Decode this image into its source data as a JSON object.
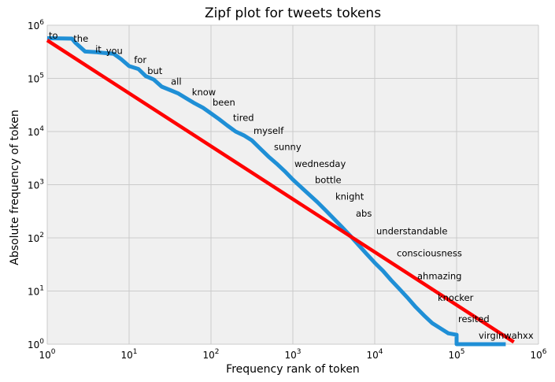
{
  "chart_data": {
    "type": "line",
    "title": "Zipf plot for tweets tokens",
    "xlabel": "Frequency rank of token",
    "ylabel": "Absolute frequency of token",
    "xscale": "log",
    "yscale": "log",
    "xlim": [
      1,
      1000000
    ],
    "ylim": [
      1,
      1000000
    ],
    "grid": true,
    "x_ticks": [
      {
        "base": "10",
        "exp": "0"
      },
      {
        "base": "10",
        "exp": "1"
      },
      {
        "base": "10",
        "exp": "2"
      },
      {
        "base": "10",
        "exp": "3"
      },
      {
        "base": "10",
        "exp": "4"
      },
      {
        "base": "10",
        "exp": "5"
      },
      {
        "base": "10",
        "exp": "6"
      }
    ],
    "y_ticks": [
      {
        "base": "10",
        "exp": "0"
      },
      {
        "base": "10",
        "exp": "1"
      },
      {
        "base": "10",
        "exp": "2"
      },
      {
        "base": "10",
        "exp": "3"
      },
      {
        "base": "10",
        "exp": "4"
      },
      {
        "base": "10",
        "exp": "5"
      },
      {
        "base": "10",
        "exp": "6"
      }
    ],
    "series": [
      {
        "color": "#1f8fd6",
        "x": [
          1,
          2,
          2.2,
          2.9,
          4,
          5,
          6.5,
          8,
          10,
          13,
          16,
          20,
          25,
          32,
          40,
          50,
          63,
          80,
          100,
          126,
          158,
          200,
          251,
          316,
          398,
          501,
          631,
          794,
          1000,
          1259,
          1585,
          1995,
          2512,
          3162,
          3981,
          5012,
          6310,
          7943,
          10000,
          12589,
          15849,
          19953,
          25119,
          31623,
          39811,
          50119,
          63096,
          79433,
          100000,
          100000,
          398107
        ],
        "y": [
          570000,
          560000,
          470000,
          320000,
          310000,
          300000,
          290000,
          230000,
          170000,
          150000,
          110000,
          95000,
          70000,
          60000,
          52000,
          42000,
          34000,
          28000,
          22000,
          17000,
          13000,
          10000,
          8500,
          6800,
          4800,
          3400,
          2500,
          1800,
          1250,
          900,
          650,
          470,
          330,
          230,
          160,
          110,
          74,
          50,
          34,
          24,
          16,
          11,
          7.5,
          5,
          3.5,
          2.5,
          2,
          1.6,
          1.5,
          1,
          1
        ]
      },
      {
        "color": "#ff0000",
        "x": [
          1,
          500000
        ],
        "y": [
          520000,
          1.1
        ]
      }
    ],
    "annotations": [
      {
        "text": "to",
        "x": 1,
        "y": 600000
      },
      {
        "text": "the",
        "x": 2,
        "y": 520000
      },
      {
        "text": "it",
        "x": 3.7,
        "y": 330000
      },
      {
        "text": "you",
        "x": 5,
        "y": 310000
      },
      {
        "text": "for",
        "x": 11,
        "y": 210000
      },
      {
        "text": "but",
        "x": 16,
        "y": 130000
      },
      {
        "text": "all",
        "x": 31,
        "y": 82000
      },
      {
        "text": "know",
        "x": 56,
        "y": 51000
      },
      {
        "text": "been",
        "x": 100,
        "y": 33000
      },
      {
        "text": "tired",
        "x": 178,
        "y": 17000
      },
      {
        "text": "myself",
        "x": 316,
        "y": 9700
      },
      {
        "text": "sunny",
        "x": 562,
        "y": 4800
      },
      {
        "text": "wednesday",
        "x": 1000,
        "y": 2300
      },
      {
        "text": "bottle",
        "x": 1778,
        "y": 1150
      },
      {
        "text": "knight",
        "x": 3162,
        "y": 560
      },
      {
        "text": "abs",
        "x": 5623,
        "y": 270
      },
      {
        "text": "understandable",
        "x": 10000,
        "y": 125
      },
      {
        "text": "consciousness",
        "x": 17783,
        "y": 48
      },
      {
        "text": "ahmazing",
        "x": 31623,
        "y": 18
      },
      {
        "text": "knocker",
        "x": 56234,
        "y": 7
      },
      {
        "text": "resited",
        "x": 100000,
        "y": 2.8
      },
      {
        "text": "virginwahxx",
        "x": 177828,
        "y": 1.35
      }
    ]
  }
}
